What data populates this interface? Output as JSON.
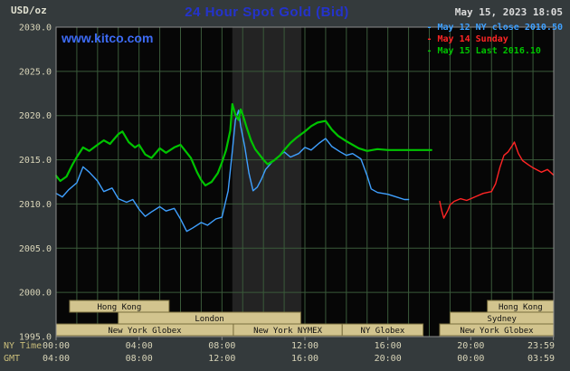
{
  "header": {
    "units_label": "USD/oz",
    "title": "24 Hour Spot Gold (Bid)",
    "datetime": "May 15, 2023 18:05",
    "watermark": "www.kitco.com"
  },
  "legend": [
    {
      "marker": "-",
      "label": "May 12 NY close 2010.50",
      "color": "#3FA0FF"
    },
    {
      "marker": "-",
      "label": "May 14 Sunday",
      "color": "#FF2525"
    },
    {
      "marker": "-",
      "label": "May 15 Last 2016.10",
      "color": "#00C400"
    }
  ],
  "axes": {
    "y_ticks": [
      "2030.0",
      "2025.0",
      "2020.0",
      "2015.0",
      "2010.0",
      "2005.0",
      "2000.0",
      "1995.0"
    ],
    "x_axis_name_ny": "NY Time",
    "x_axis_name_gmt": "GMT",
    "x_ticks_ny": [
      "00:00",
      "04:00",
      "08:00",
      "12:00",
      "16:00",
      "20:00",
      "23:59"
    ],
    "x_ticks_gmt": [
      "04:00",
      "08:00",
      "12:00",
      "16:00",
      "20:00",
      "00:00",
      "03:59"
    ]
  },
  "sessions": [
    {
      "label": "Hong Kong",
      "row": 1,
      "start": 0.65,
      "end": 5.45
    },
    {
      "label": "Hong Kong",
      "row": 1,
      "start": 20.8,
      "end": 24
    },
    {
      "label": "London",
      "row": 2,
      "start": 3.0,
      "end": 11.8
    },
    {
      "label": "Sydney",
      "row": 2,
      "start": 19.0,
      "end": 24
    },
    {
      "label": "New York Globex",
      "row": 3,
      "start": 0,
      "end": 8.55
    },
    {
      "label": "New York NYMEX",
      "row": 3,
      "start": 8.55,
      "end": 13.8
    },
    {
      "label": "NY Globex",
      "row": 3,
      "start": 13.8,
      "end": 17.7
    },
    {
      "label": "New York Globex",
      "row": 3,
      "start": 18.5,
      "end": 24
    }
  ],
  "colors": {
    "page_bg": "#343A3C",
    "plot_bg": "#060606",
    "band": "#232323",
    "grid": "#3A5A3A",
    "border": "#8C8C8C",
    "axis_text": "#D8D4B8",
    "axis_name_text": "#C8BC7A",
    "title": "#2433CC",
    "watermark": "#3D6BF5",
    "datetime": "#DCDCDC",
    "units": "#E0E0D0",
    "session_fill": "#D2C48E",
    "session_border": "#7A6F3E",
    "session_text": "#101010"
  },
  "chart_data": {
    "type": "line",
    "title": "24 Hour Spot Gold (Bid)",
    "xlabel": "NY Time",
    "ylabel": "USD/oz",
    "ylim": [
      1995.0,
      2030.0
    ],
    "xlim_hours": [
      0,
      24
    ],
    "grid": true,
    "y_gridline_step": 5,
    "x_gridline_step_hours": 1,
    "highlight_band_hours": [
      8.5,
      11.83
    ],
    "tick_hours": [
      0,
      4,
      8,
      12,
      16,
      20,
      23.983
    ],
    "series": [
      {
        "name": "May 12 NY close 2010.50",
        "color": "#3FA0FF",
        "width": 1.4,
        "points": [
          [
            0,
            2011.2
          ],
          [
            0.3,
            2010.8
          ],
          [
            0.6,
            2011.6
          ],
          [
            1.0,
            2012.4
          ],
          [
            1.3,
            2014.2
          ],
          [
            1.6,
            2013.6
          ],
          [
            2.0,
            2012.6
          ],
          [
            2.3,
            2011.4
          ],
          [
            2.7,
            2011.8
          ],
          [
            3.0,
            2010.6
          ],
          [
            3.4,
            2010.2
          ],
          [
            3.7,
            2010.5
          ],
          [
            4.0,
            2009.4
          ],
          [
            4.3,
            2008.6
          ],
          [
            4.6,
            2009.1
          ],
          [
            5.0,
            2009.7
          ],
          [
            5.3,
            2009.2
          ],
          [
            5.7,
            2009.5
          ],
          [
            6.0,
            2008.3
          ],
          [
            6.3,
            2006.9
          ],
          [
            6.6,
            2007.3
          ],
          [
            7.0,
            2007.9
          ],
          [
            7.3,
            2007.6
          ],
          [
            7.7,
            2008.3
          ],
          [
            8.0,
            2008.5
          ],
          [
            8.3,
            2011.5
          ],
          [
            8.5,
            2016.0
          ],
          [
            8.65,
            2019.5
          ],
          [
            8.8,
            2020.6
          ],
          [
            8.9,
            2018.8
          ],
          [
            9.1,
            2016.5
          ],
          [
            9.3,
            2013.5
          ],
          [
            9.5,
            2011.5
          ],
          [
            9.7,
            2011.9
          ],
          [
            9.9,
            2012.8
          ],
          [
            10.1,
            2013.9
          ],
          [
            10.4,
            2014.7
          ],
          [
            10.7,
            2015.3
          ],
          [
            11.0,
            2015.9
          ],
          [
            11.3,
            2015.3
          ],
          [
            11.7,
            2015.7
          ],
          [
            12.0,
            2016.4
          ],
          [
            12.3,
            2016.1
          ],
          [
            12.7,
            2016.9
          ],
          [
            13.0,
            2017.4
          ],
          [
            13.3,
            2016.5
          ],
          [
            13.7,
            2015.9
          ],
          [
            14.0,
            2015.5
          ],
          [
            14.3,
            2015.7
          ],
          [
            14.7,
            2015.1
          ],
          [
            15.0,
            2013.2
          ],
          [
            15.2,
            2011.7
          ],
          [
            15.5,
            2011.3
          ],
          [
            16.0,
            2011.1
          ],
          [
            16.4,
            2010.8
          ],
          [
            16.8,
            2010.5
          ],
          [
            17.0,
            2010.5
          ]
        ]
      },
      {
        "name": "May 14 Sunday",
        "color": "#FF2525",
        "width": 1.4,
        "points": [
          [
            18.5,
            2010.3
          ],
          [
            18.6,
            2009.2
          ],
          [
            18.7,
            2008.4
          ],
          [
            18.9,
            2009.3
          ],
          [
            19.0,
            2009.9
          ],
          [
            19.2,
            2010.3
          ],
          [
            19.5,
            2010.6
          ],
          [
            19.8,
            2010.4
          ],
          [
            20.0,
            2010.6
          ],
          [
            20.3,
            2010.9
          ],
          [
            20.6,
            2011.2
          ],
          [
            21.0,
            2011.4
          ],
          [
            21.2,
            2012.3
          ],
          [
            21.4,
            2014.1
          ],
          [
            21.6,
            2015.5
          ],
          [
            21.8,
            2015.9
          ],
          [
            22.0,
            2016.6
          ],
          [
            22.1,
            2017.0
          ],
          [
            22.3,
            2015.7
          ],
          [
            22.5,
            2014.9
          ],
          [
            22.8,
            2014.4
          ],
          [
            23.0,
            2014.1
          ],
          [
            23.4,
            2013.6
          ],
          [
            23.7,
            2013.9
          ],
          [
            23.98,
            2013.3
          ]
        ]
      },
      {
        "name": "May 15 Last 2016.10",
        "color": "#00C400",
        "width": 2.2,
        "points": [
          [
            0,
            2013.2
          ],
          [
            0.2,
            2012.6
          ],
          [
            0.5,
            2013.1
          ],
          [
            0.8,
            2014.5
          ],
          [
            1.0,
            2015.3
          ],
          [
            1.3,
            2016.4
          ],
          [
            1.6,
            2016.0
          ],
          [
            2.0,
            2016.7
          ],
          [
            2.3,
            2017.2
          ],
          [
            2.6,
            2016.8
          ],
          [
            3.0,
            2017.9
          ],
          [
            3.2,
            2018.2
          ],
          [
            3.5,
            2017.0
          ],
          [
            3.8,
            2016.4
          ],
          [
            4.0,
            2016.7
          ],
          [
            4.3,
            2015.6
          ],
          [
            4.6,
            2015.2
          ],
          [
            5.0,
            2016.3
          ],
          [
            5.3,
            2015.8
          ],
          [
            5.7,
            2016.4
          ],
          [
            6.0,
            2016.7
          ],
          [
            6.2,
            2016.1
          ],
          [
            6.5,
            2015.2
          ],
          [
            6.8,
            2013.6
          ],
          [
            7.0,
            2012.7
          ],
          [
            7.2,
            2012.1
          ],
          [
            7.5,
            2012.5
          ],
          [
            7.8,
            2013.5
          ],
          [
            8.0,
            2014.7
          ],
          [
            8.2,
            2016.1
          ],
          [
            8.4,
            2018.3
          ],
          [
            8.5,
            2021.3
          ],
          [
            8.65,
            2020.1
          ],
          [
            8.8,
            2019.5
          ],
          [
            8.9,
            2020.7
          ],
          [
            9.0,
            2020.1
          ],
          [
            9.2,
            2018.6
          ],
          [
            9.4,
            2017.2
          ],
          [
            9.6,
            2016.2
          ],
          [
            9.8,
            2015.6
          ],
          [
            10.0,
            2015.0
          ],
          [
            10.2,
            2014.5
          ],
          [
            10.5,
            2014.9
          ],
          [
            10.8,
            2015.5
          ],
          [
            11.0,
            2016.1
          ],
          [
            11.3,
            2016.9
          ],
          [
            11.6,
            2017.5
          ],
          [
            12.0,
            2018.2
          ],
          [
            12.3,
            2018.8
          ],
          [
            12.6,
            2019.2
          ],
          [
            13.0,
            2019.4
          ],
          [
            13.3,
            2018.4
          ],
          [
            13.6,
            2017.7
          ],
          [
            14.0,
            2017.1
          ],
          [
            14.3,
            2016.7
          ],
          [
            14.6,
            2016.3
          ],
          [
            15.0,
            2016.0
          ],
          [
            15.5,
            2016.2
          ],
          [
            16.0,
            2016.1
          ],
          [
            16.5,
            2016.1
          ],
          [
            17.0,
            2016.1
          ],
          [
            18.1,
            2016.1
          ]
        ]
      }
    ]
  }
}
